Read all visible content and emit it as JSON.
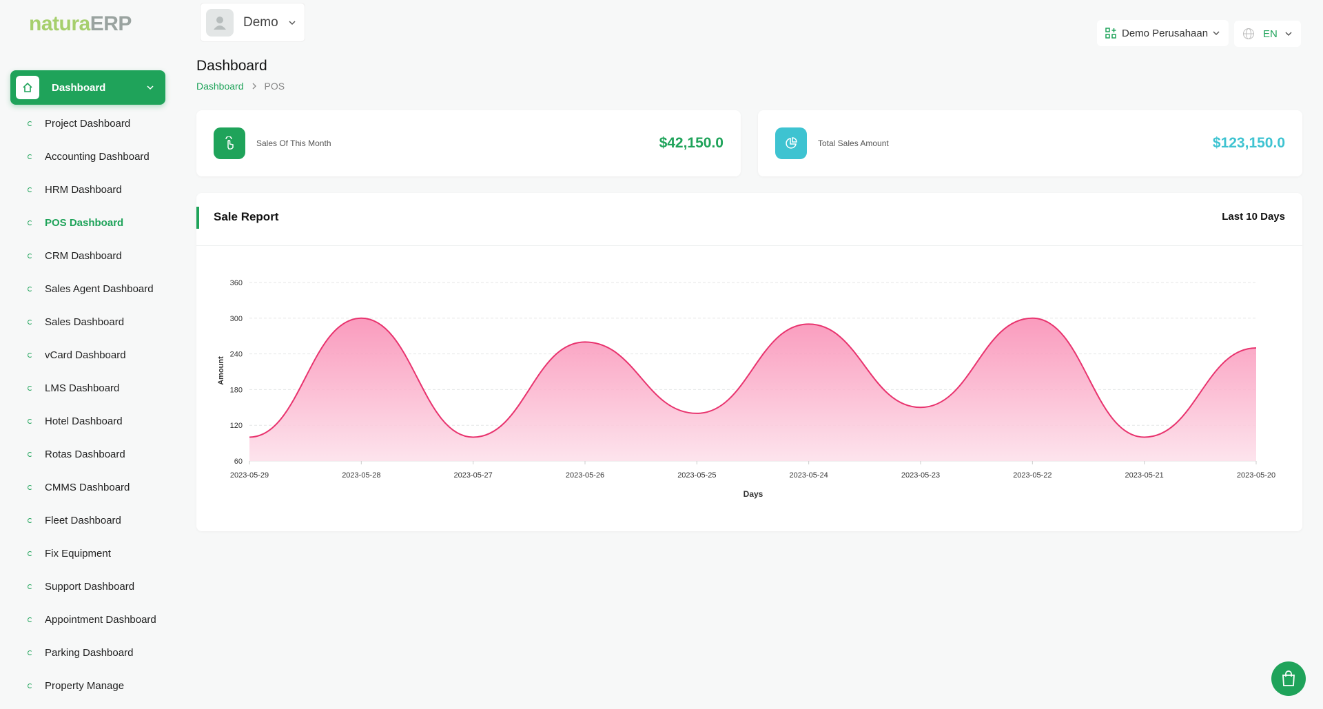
{
  "brand": {
    "name_a": "natura",
    "name_b": "ERP"
  },
  "user": {
    "name": "Demo"
  },
  "company": "Demo Perusahaan",
  "language": "EN",
  "sidebar": {
    "section": "Dashboard",
    "items": [
      {
        "label": "Project Dashboard"
      },
      {
        "label": "Accounting Dashboard"
      },
      {
        "label": "HRM Dashboard"
      },
      {
        "label": "POS Dashboard",
        "active": true
      },
      {
        "label": "CRM Dashboard"
      },
      {
        "label": "Sales Agent Dashboard"
      },
      {
        "label": "Sales Dashboard"
      },
      {
        "label": "vCard Dashboard"
      },
      {
        "label": "LMS Dashboard"
      },
      {
        "label": "Hotel Dashboard"
      },
      {
        "label": "Rotas Dashboard"
      },
      {
        "label": "CMMS Dashboard"
      },
      {
        "label": "Fleet Dashboard"
      },
      {
        "label": "Fix Equipment"
      },
      {
        "label": "Support Dashboard"
      },
      {
        "label": "Appointment Dashboard"
      },
      {
        "label": "Parking Dashboard"
      },
      {
        "label": "Property Manage"
      }
    ]
  },
  "page": {
    "title": "Dashboard",
    "breadcrumb": [
      "Dashboard",
      "POS"
    ]
  },
  "cards": [
    {
      "label": "Sales Of This Month",
      "value": "$42,150.0"
    },
    {
      "label": "Total Sales Amount",
      "value": "$123,150.0"
    }
  ],
  "report_period": "Last 10 Days",
  "chart_data": {
    "type": "area",
    "title": "Sale Report",
    "xlabel": "Days",
    "ylabel": "Amount",
    "categories": [
      "2023-05-29",
      "2023-05-28",
      "2023-05-27",
      "2023-05-26",
      "2023-05-25",
      "2023-05-24",
      "2023-05-23",
      "2023-05-22",
      "2023-05-21",
      "2023-05-20"
    ],
    "values": [
      100,
      300,
      100,
      260,
      140,
      290,
      150,
      300,
      100,
      250
    ],
    "color": "#e8336e",
    "ylim": [
      60,
      360
    ],
    "yticks": [
      60,
      120,
      180,
      240,
      300,
      360
    ],
    "grid": true
  }
}
